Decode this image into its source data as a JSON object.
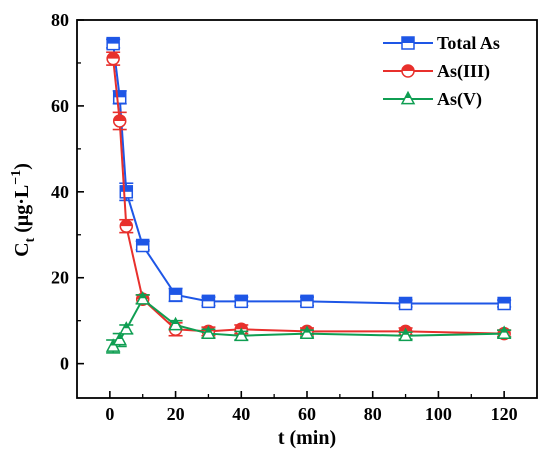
{
  "chart_data": {
    "type": "line",
    "xlabel": "t (min)",
    "ylabel": "C",
    "ylabel_sub": "t",
    "ylabel_units": " (μg·L",
    "ylabel_sup": "−1",
    "ylabel_end": ")",
    "xlim": [
      -10,
      130
    ],
    "ylim": [
      -8,
      80
    ],
    "xticks": [
      0,
      20,
      40,
      60,
      80,
      100,
      120
    ],
    "yticks": [
      0,
      20,
      40,
      60,
      80
    ],
    "grid": false,
    "legend_position": "top-right",
    "series": [
      {
        "name": "Total As",
        "color": "#1e56e6",
        "marker": "square",
        "x": [
          1,
          3,
          5,
          10,
          20,
          30,
          40,
          60,
          90,
          120
        ],
        "y": [
          74.5,
          62,
          40,
          27.5,
          16,
          14.5,
          14.5,
          14.5,
          14,
          14
        ],
        "err": [
          1,
          1.5,
          2,
          1,
          1.5,
          1,
          1,
          1,
          0.8,
          0.8
        ]
      },
      {
        "name": "As(III)",
        "color": "#e8302c",
        "marker": "circle",
        "x": [
          1,
          3,
          5,
          10,
          20,
          30,
          40,
          60,
          90,
          120
        ],
        "y": [
          71,
          56.5,
          32,
          15,
          8,
          7.5,
          8,
          7.5,
          7.5,
          7
        ],
        "err": [
          1.5,
          2,
          1.5,
          1,
          1.5,
          1,
          1,
          0.8,
          0.8,
          0.8
        ]
      },
      {
        "name": "As(V)",
        "color": "#0f9e52",
        "marker": "triangle",
        "x": [
          1,
          3,
          5,
          10,
          20,
          30,
          40,
          60,
          90,
          120
        ],
        "y": [
          4,
          5.5,
          8,
          15,
          9,
          7,
          6.5,
          7,
          6.5,
          7
        ],
        "err": [
          1.5,
          1.5,
          1,
          1,
          1,
          1,
          1,
          0.8,
          0.8,
          0.8
        ]
      }
    ]
  }
}
